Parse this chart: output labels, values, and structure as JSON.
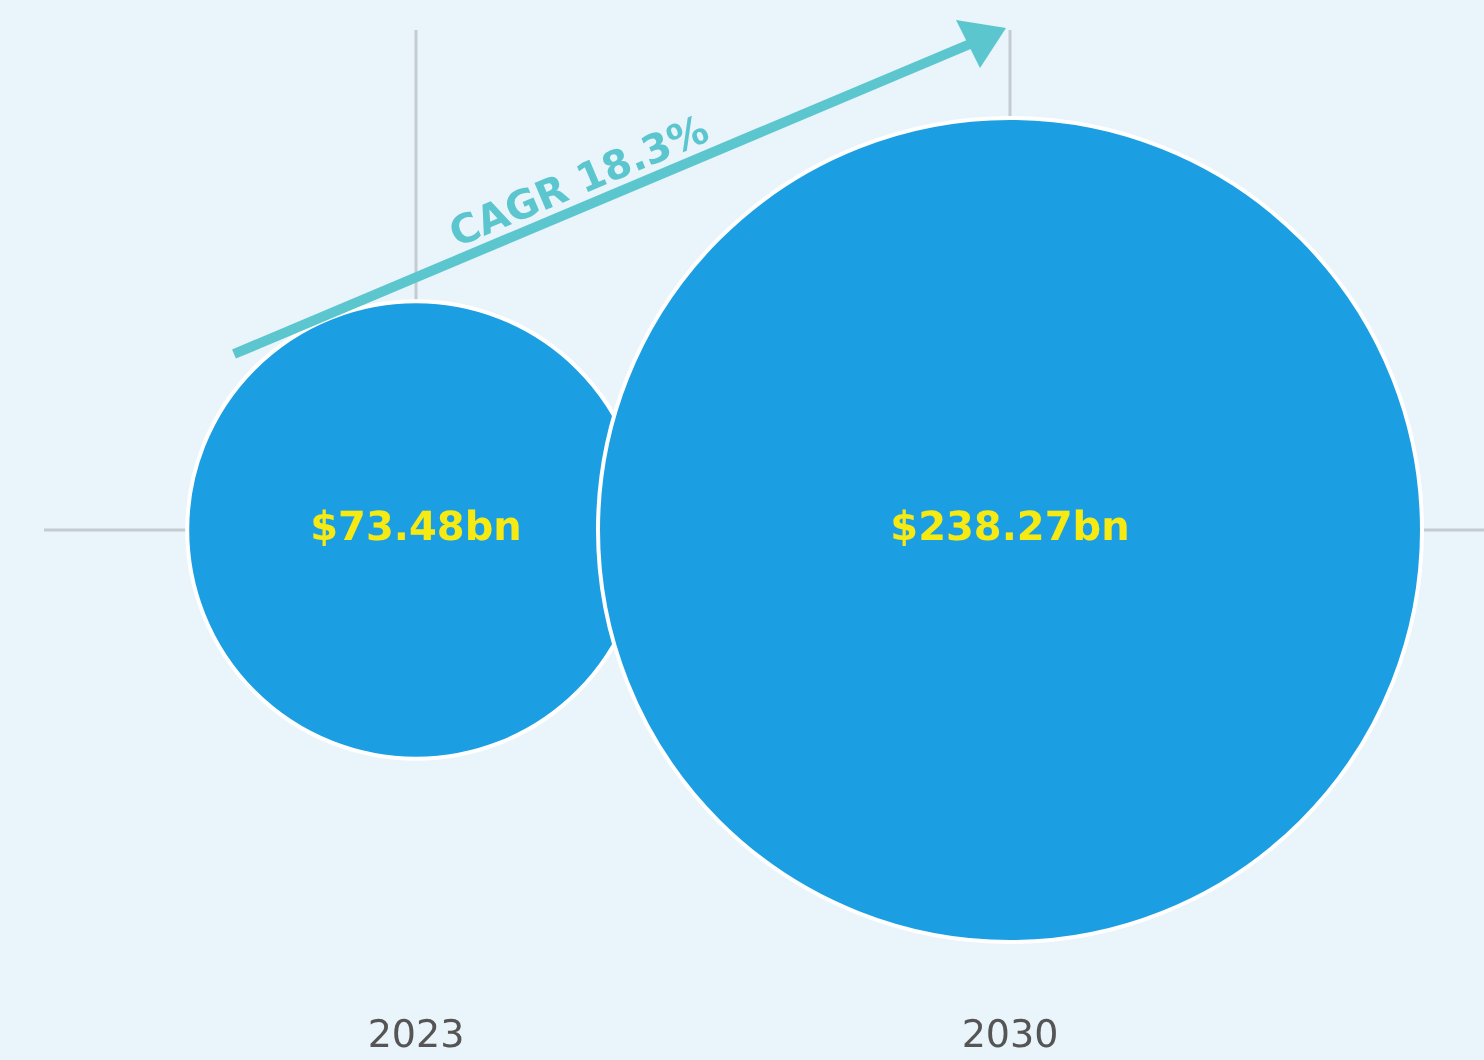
{
  "chart_data": {
    "type": "other",
    "categories": [
      "2023",
      "2030"
    ],
    "series": [
      {
        "color": "#1c9fe2",
        "values": [
          73.48,
          238.27
        ],
        "value_labels": [
          "$73.48bn",
          "$238.27bn"
        ]
      }
    ],
    "annotations": [
      "CAGR 18.3%"
    ],
    "legend": false
  }
}
